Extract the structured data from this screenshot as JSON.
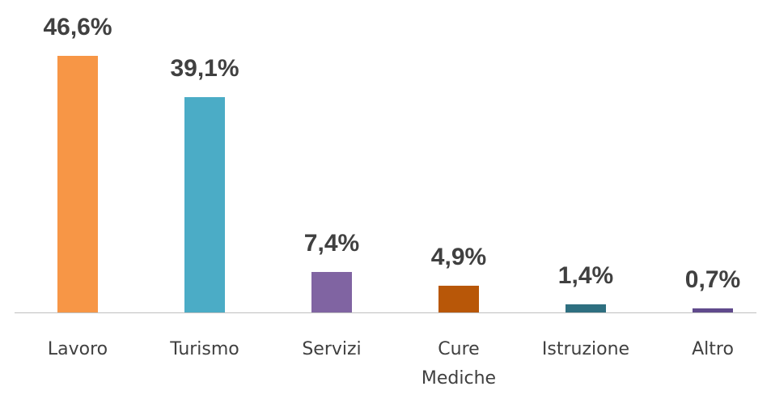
{
  "chart_data": {
    "type": "bar",
    "categories": [
      "Lavoro",
      "Turismo",
      "Servizi",
      "Cure Mediche",
      "Istruzione",
      "Altro"
    ],
    "values": [
      46.6,
      39.1,
      7.4,
      4.9,
      1.4,
      0.7
    ],
    "value_labels": [
      "46,6%",
      "39,1%",
      "7,4%",
      "4,9%",
      "1,4%",
      "0,7%"
    ],
    "colors": [
      "#f79646",
      "#4bacc6",
      "#8064a2",
      "#b85708",
      "#2e6f80",
      "#604a8c"
    ]
  }
}
